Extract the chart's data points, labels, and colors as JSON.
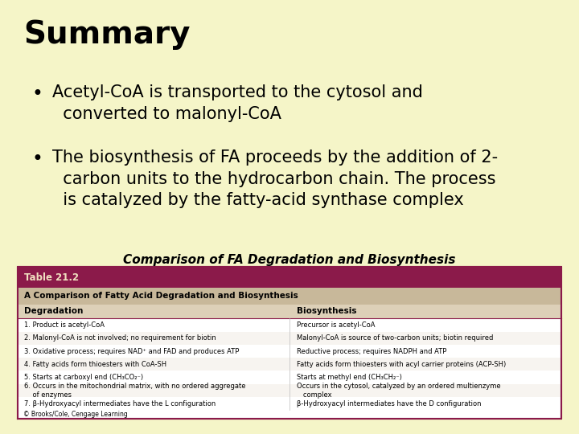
{
  "bg_color": "#f5f5c8",
  "title": "Summary",
  "title_fontsize": 28,
  "bullet1_line1": "Acetyl-CoA is transported to the cytosol and",
  "bullet1_line2": "  converted to malonyl-CoA",
  "bullet2_line1": "The biosynthesis of FA proceeds by the addition of 2-",
  "bullet2_line2": "  carbon units to the hydrocarbon chain. The process",
  "bullet2_line3": "  is catalyzed by the fatty-acid synthase complex",
  "bullet_fontsize": 15,
  "table_caption": "Comparison of FA Degradation and Biosynthesis",
  "table_caption_fontsize": 11,
  "table_title_row": "Table 21.2",
  "table_subtitle_row": "A Comparison of Fatty Acid Degradation and Biosynthesis",
  "table_header_left": "Degradation",
  "table_header_right": "Biosynthesis",
  "table_header_col_color": "#ddd0b8",
  "table_subtitle_color": "#c8b89a",
  "table_title_bg": "#8b1a4a",
  "table_title_color": "#f0e0c0",
  "table_bg": "#ffffff",
  "table_border_color": "#8b1a4a",
  "degradation_rows": [
    "1. Product is acetyl-CoA",
    "2. Malonyl-CoA is not involved; no requirement for biotin",
    "3. Oxidative process; requires NAD⁺ and FAD and produces ATP",
    "4. Fatty acids form thioesters with CoA-SH",
    "5. Starts at carboxyl end (CH₃CO₂⁻)",
    "6. Occurs in the mitochondrial matrix, with no ordered aggregate\n    of enzymes",
    "7. β-Hydroxyacyl intermediates have the L configuration"
  ],
  "biosynthesis_rows": [
    "Precursor is acetyl-CoA",
    "Malonyl-CoA is source of two-carbon units; biotin required",
    "Reductive process; requires NADPH and ATP",
    "Fatty acids form thioesters with acyl carrier proteins (ACP-SH)",
    "Starts at methyl end (CH₃CH₂⁻)",
    "Occurs in the cytosol, catalyzed by an ordered multienzyme\n   complex",
    "β-Hydroxyacyl intermediates have the D configuration"
  ],
  "footnote": "© Brooks/Cole, Cengage Learning"
}
